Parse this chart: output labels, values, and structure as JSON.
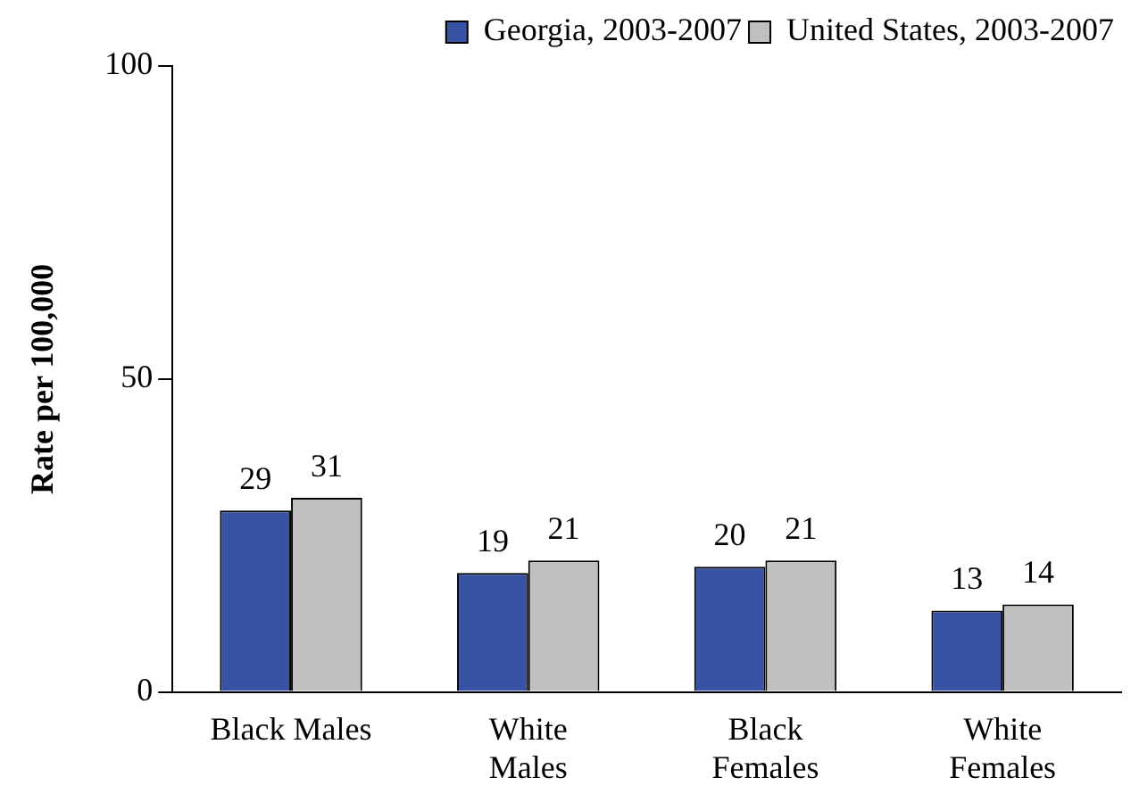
{
  "chart_data": {
    "type": "bar",
    "ylabel": "Rate per 100,000",
    "categories": [
      "Black Males",
      "White\nMales",
      "Black\nFemales",
      "White\nFemales"
    ],
    "series": [
      {
        "name": "Georgia, 2003-2007",
        "color": "#3953a4",
        "values": [
          29,
          19,
          20,
          13
        ]
      },
      {
        "name": "United States, 2003-2007",
        "color": "#c0c0c0",
        "values": [
          31,
          21,
          21,
          14
        ]
      }
    ],
    "ylim": [
      0,
      100
    ],
    "yticks": [
      0,
      50,
      100
    ],
    "grid": false,
    "legend": "top right",
    "data_labels": true
  }
}
